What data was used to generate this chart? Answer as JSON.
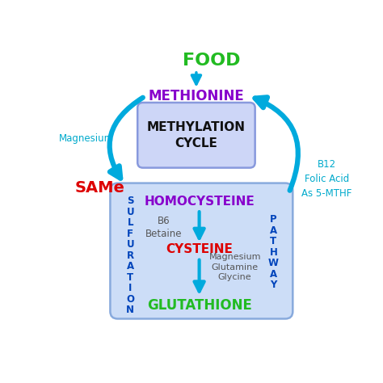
{
  "background_color": "#ffffff",
  "food_text": "FOOD",
  "food_color": "#22bb22",
  "methionine_text": "METHIONINE",
  "methionine_color": "#8800cc",
  "same_text": "SAMe",
  "same_color": "#dd0000",
  "magnesium_text": "Magnesium",
  "magnesium_color": "#00aacc",
  "b12_text": "B12\nFolic Acid\nAs 5-MTHF",
  "b12_color": "#00aacc",
  "methylation_text": "METHYLATION\nCYCLE",
  "methylation_color": "#111111",
  "methylation_box_face": "#cdd6f7",
  "methylation_box_edge": "#8899dd",
  "sulfuration_text": "S\nU\nL\nF\nU\nR\nA\nT\nI\nO\nN",
  "sulfuration_color": "#0044bb",
  "pathway_text": "P\nA\nT\nH\nW\nA\nY",
  "pathway_color": "#0044bb",
  "homocysteine_text": "HOMOCYSTEINE",
  "homocysteine_color": "#8800cc",
  "cysteine_text": "CYSTEINE",
  "cysteine_color": "#dd0000",
  "glutathione_text": "GLUTATHIONE",
  "glutathione_color": "#22bb22",
  "b6_text": "B6\nBetaine",
  "b6_color": "#555555",
  "mgq_text": "Magnesium\nGlutamine\nGlycine",
  "mgq_color": "#555555",
  "arrow_color": "#00aadd",
  "inner_box_face": "#ccddf7",
  "inner_box_edge": "#88aadd"
}
